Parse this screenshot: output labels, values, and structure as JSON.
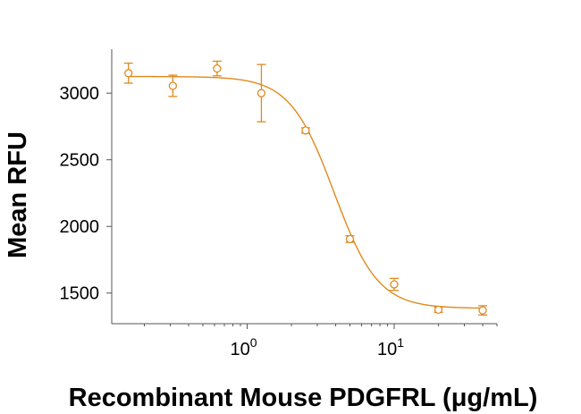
{
  "chart_data": {
    "type": "scatter",
    "title": "",
    "xlabel": "Recombinant Mouse PDGFRL (μg/mL)",
    "ylabel": "Mean RFU",
    "xscale": "log",
    "xlim": [
      0.12,
      50
    ],
    "ylim": [
      1270,
      3330
    ],
    "x_ticks": [
      {
        "value": 1,
        "base": "10",
        "exponent": "0"
      },
      {
        "value": 10,
        "base": "10",
        "exponent": "1"
      }
    ],
    "y_ticks": [
      1500,
      2000,
      2500,
      3000
    ],
    "grid": false,
    "legend": "none",
    "color": "#e08a1e",
    "series": [
      {
        "x": [
          0.156,
          0.3125,
          0.625,
          1.25,
          2.5,
          5,
          10,
          20,
          40
        ],
        "y": [
          3150,
          3055,
          3185,
          3000,
          2720,
          1905,
          1565,
          1375,
          1370
        ],
        "yerr": [
          75,
          80,
          55,
          215,
          20,
          25,
          45,
          20,
          35
        ],
        "marker": "open-circle"
      }
    ],
    "fit": {
      "type": "4PL",
      "top": 3125,
      "bottom": 1385,
      "ec50": 3.9,
      "hill": 2.9
    }
  }
}
